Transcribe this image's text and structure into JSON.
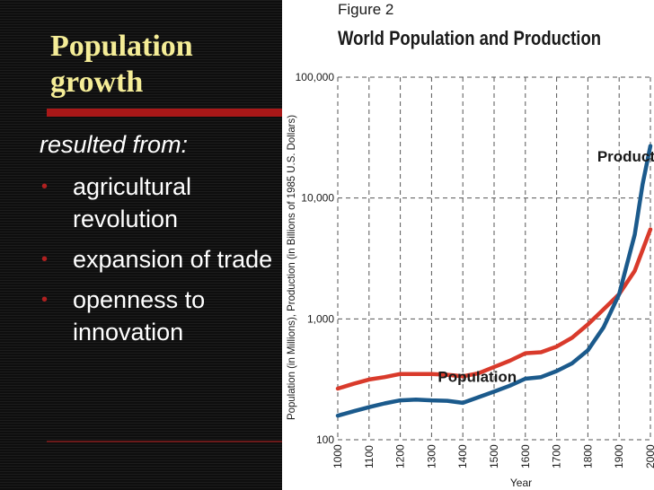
{
  "slide": {
    "title_line1": "Population",
    "title_line2": "growth",
    "subtitle": "resulted from:",
    "bullets": [
      "agricultural revolution",
      "expansion of trade",
      "openness to innovation"
    ],
    "bullet_color": "#b02020",
    "title_color": "#f5ed97",
    "accent_color": "#a91818"
  },
  "chart_data": {
    "type": "line",
    "figure_label": "Figure 2",
    "title": "World Population and Production",
    "xlabel": "Year",
    "ylabel": "Population (in Millions), Production (in Billions of 1985 U.S. Dollars)",
    "y_scale": "log",
    "ylim": [
      100,
      100000
    ],
    "xlim": [
      1000,
      2000
    ],
    "y_ticks": [
      "100,000",
      "10,000",
      "1,000",
      "100"
    ],
    "y_tick_values": [
      100000,
      10000,
      1000,
      100
    ],
    "x_ticks": [
      "1000",
      "1100",
      "1200",
      "1300",
      "1400",
      "1500",
      "1600",
      "1700",
      "1800",
      "1900",
      "2000"
    ],
    "x_tick_values": [
      1000,
      1100,
      1200,
      1300,
      1400,
      1500,
      1600,
      1700,
      1800,
      1900,
      2000
    ],
    "grid": true,
    "series": [
      {
        "name": "Population",
        "color": "#d93a2b",
        "x": [
          1000,
          1050,
          1100,
          1150,
          1200,
          1250,
          1300,
          1350,
          1400,
          1450,
          1500,
          1550,
          1600,
          1650,
          1700,
          1750,
          1800,
          1850,
          1900,
          1950,
          2000
        ],
        "values": [
          265,
          290,
          315,
          330,
          350,
          350,
          350,
          345,
          335,
          355,
          400,
          450,
          520,
          530,
          590,
          700,
          900,
          1200,
          1600,
          2500,
          5500
        ]
      },
      {
        "name": "Production",
        "color": "#1b5a8c",
        "x": [
          1000,
          1050,
          1100,
          1150,
          1200,
          1250,
          1300,
          1350,
          1400,
          1450,
          1500,
          1550,
          1600,
          1650,
          1700,
          1750,
          1800,
          1850,
          1900,
          1950,
          1975,
          2000
        ],
        "values": [
          158,
          172,
          186,
          200,
          212,
          215,
          212,
          210,
          202,
          225,
          250,
          280,
          320,
          330,
          370,
          430,
          550,
          850,
          1600,
          5000,
          13000,
          27000
        ]
      }
    ]
  }
}
